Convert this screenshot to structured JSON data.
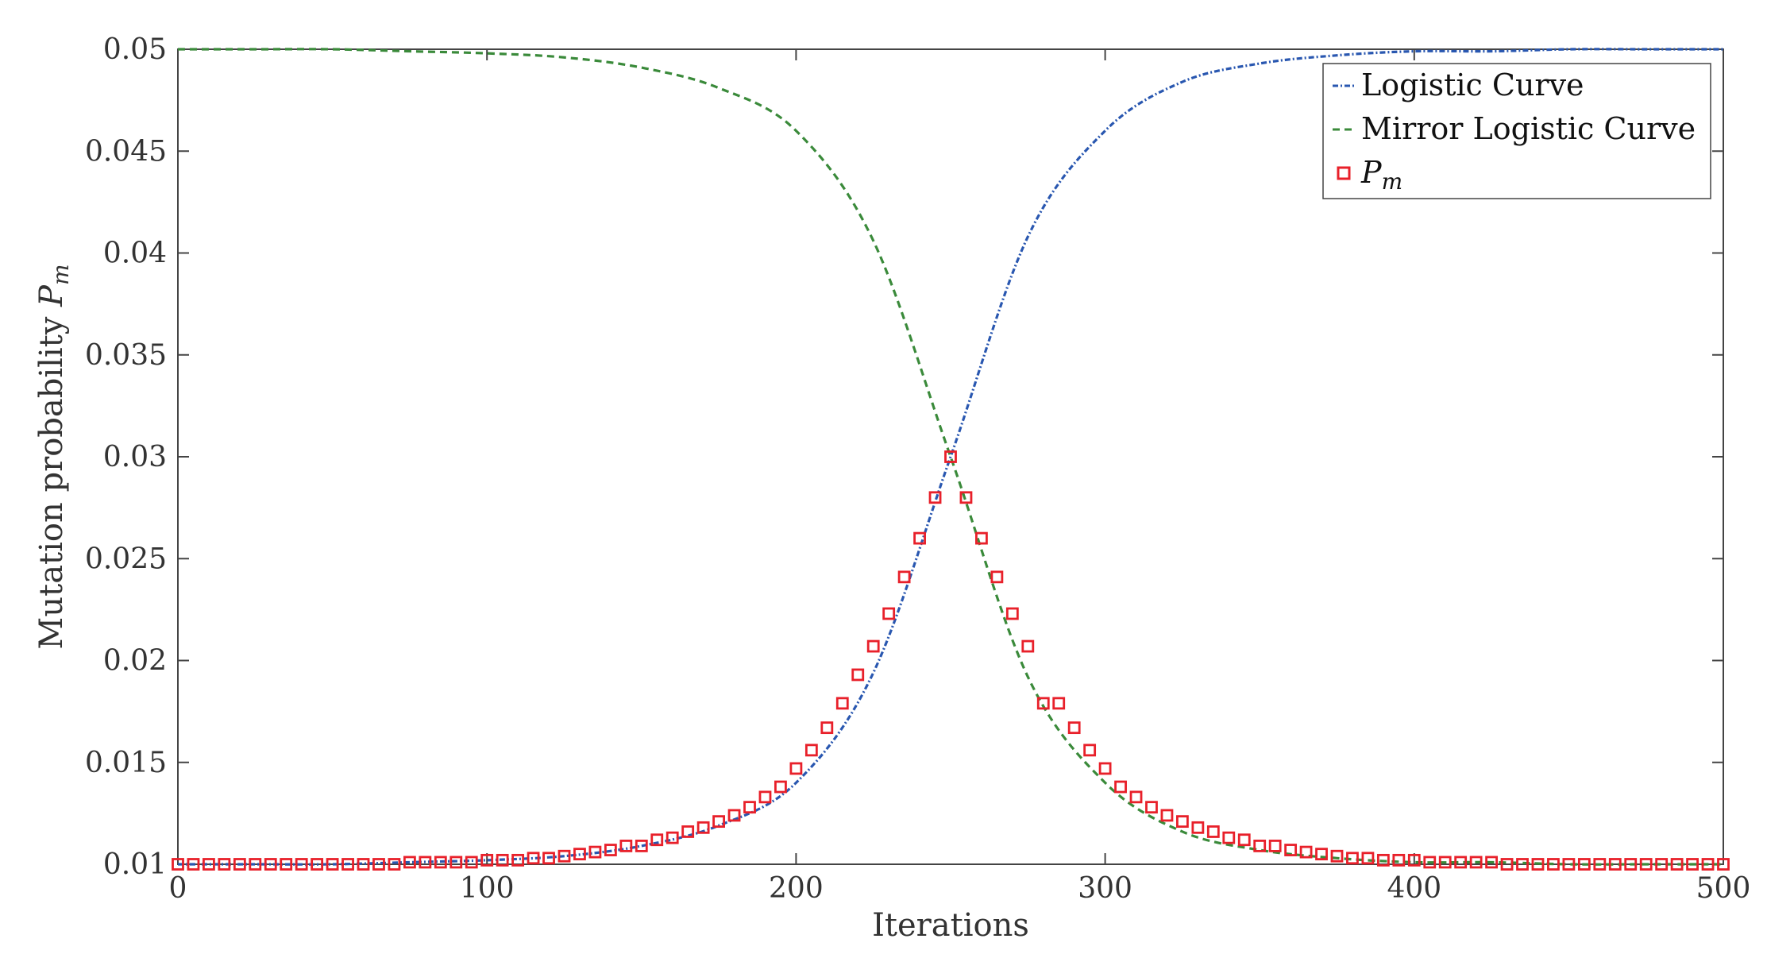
{
  "chart_data": {
    "type": "line",
    "xlabel": "Iterations",
    "ylabel": "Mutation probability ",
    "ylabel_symbol": "P",
    "ylabel_subscript": "m",
    "xlim": [
      0,
      500
    ],
    "ylim": [
      0.01,
      0.05
    ],
    "xticks": [
      0,
      100,
      200,
      300,
      400,
      500
    ],
    "xtick_labels": [
      "0",
      "100",
      "200",
      "300",
      "400",
      "500"
    ],
    "yticks": [
      0.01,
      0.015,
      0.02,
      0.025,
      0.03,
      0.035,
      0.04,
      0.045,
      0.05
    ],
    "ytick_labels": [
      "0.01",
      "0.015",
      "0.02",
      "0.025",
      "0.03",
      "0.035",
      "0.04",
      "0.045",
      "0.05"
    ],
    "grid": false,
    "legend_position": "top-right",
    "series": [
      {
        "name": "Logistic Curve",
        "style": "dash-dot",
        "color": "#2957b0",
        "x": [
          0,
          25,
          50,
          75,
          100,
          125,
          150,
          175,
          200,
          225,
          250,
          275,
          300,
          325,
          350,
          375,
          400,
          425,
          450,
          475,
          500
        ],
        "y": [
          0.01,
          0.01,
          0.01,
          0.0101,
          0.0102,
          0.0104,
          0.0109,
          0.0119,
          0.014,
          0.0194,
          0.03,
          0.0408,
          0.046,
          0.0484,
          0.0493,
          0.0497,
          0.0499,
          0.0499,
          0.05,
          0.05,
          0.05
        ]
      },
      {
        "name": "Mirror Logistic Curve",
        "style": "dashed",
        "color": "#3a8a3a",
        "x": [
          0,
          25,
          50,
          75,
          100,
          125,
          150,
          175,
          200,
          225,
          250,
          275,
          300,
          325,
          350,
          375,
          400,
          425,
          450,
          475,
          500
        ],
        "y": [
          0.05,
          0.05,
          0.05,
          0.0499,
          0.0498,
          0.0496,
          0.0491,
          0.0481,
          0.046,
          0.0406,
          0.03,
          0.0192,
          0.014,
          0.0116,
          0.0107,
          0.0103,
          0.0101,
          0.0101,
          0.01,
          0.01,
          0.01
        ]
      },
      {
        "name": "P",
        "name_subscript": "m",
        "style": "square-markers",
        "color": "#e8202a",
        "x": [
          0,
          5,
          10,
          15,
          20,
          25,
          30,
          35,
          40,
          45,
          50,
          55,
          60,
          65,
          70,
          75,
          80,
          85,
          90,
          95,
          100,
          105,
          110,
          115,
          120,
          125,
          130,
          135,
          140,
          145,
          150,
          155,
          160,
          165,
          170,
          175,
          180,
          185,
          190,
          195,
          200,
          205,
          210,
          215,
          220,
          225,
          230,
          235,
          240,
          245,
          250,
          255,
          260,
          265,
          270,
          275,
          280,
          285,
          290,
          295,
          300,
          305,
          310,
          315,
          320,
          325,
          330,
          335,
          340,
          345,
          350,
          355,
          360,
          365,
          370,
          375,
          380,
          385,
          390,
          395,
          400,
          405,
          410,
          415,
          420,
          425,
          430,
          435,
          440,
          445,
          450,
          455,
          460,
          465,
          470,
          475,
          480,
          485,
          490,
          495,
          500
        ],
        "y": [
          0.01,
          0.01,
          0.01,
          0.01,
          0.01,
          0.01,
          0.01,
          0.01,
          0.01,
          0.01,
          0.01,
          0.01,
          0.01,
          0.01,
          0.01,
          0.0101,
          0.0101,
          0.0101,
          0.0101,
          0.0101,
          0.0102,
          0.0102,
          0.0102,
          0.0103,
          0.0103,
          0.0104,
          0.0105,
          0.0106,
          0.0107,
          0.0109,
          0.0109,
          0.0112,
          0.0113,
          0.0116,
          0.0118,
          0.0121,
          0.0124,
          0.0128,
          0.0133,
          0.0138,
          0.0147,
          0.0156,
          0.0167,
          0.0179,
          0.0193,
          0.0207,
          0.0223,
          0.0241,
          0.026,
          0.028,
          0.03,
          0.028,
          0.026,
          0.0241,
          0.0223,
          0.0207,
          0.0179,
          0.0179,
          0.0167,
          0.0156,
          0.0147,
          0.0138,
          0.0133,
          0.0128,
          0.0124,
          0.0121,
          0.0118,
          0.0116,
          0.0113,
          0.0112,
          0.0109,
          0.0109,
          0.0107,
          0.0106,
          0.0105,
          0.0104,
          0.0103,
          0.0103,
          0.0102,
          0.0102,
          0.0102,
          0.0101,
          0.0101,
          0.0101,
          0.0101,
          0.0101,
          0.01,
          0.01,
          0.01,
          0.01,
          0.01,
          0.01,
          0.01,
          0.01,
          0.01,
          0.01,
          0.01,
          0.01,
          0.01,
          0.01,
          0.01
        ]
      }
    ]
  }
}
